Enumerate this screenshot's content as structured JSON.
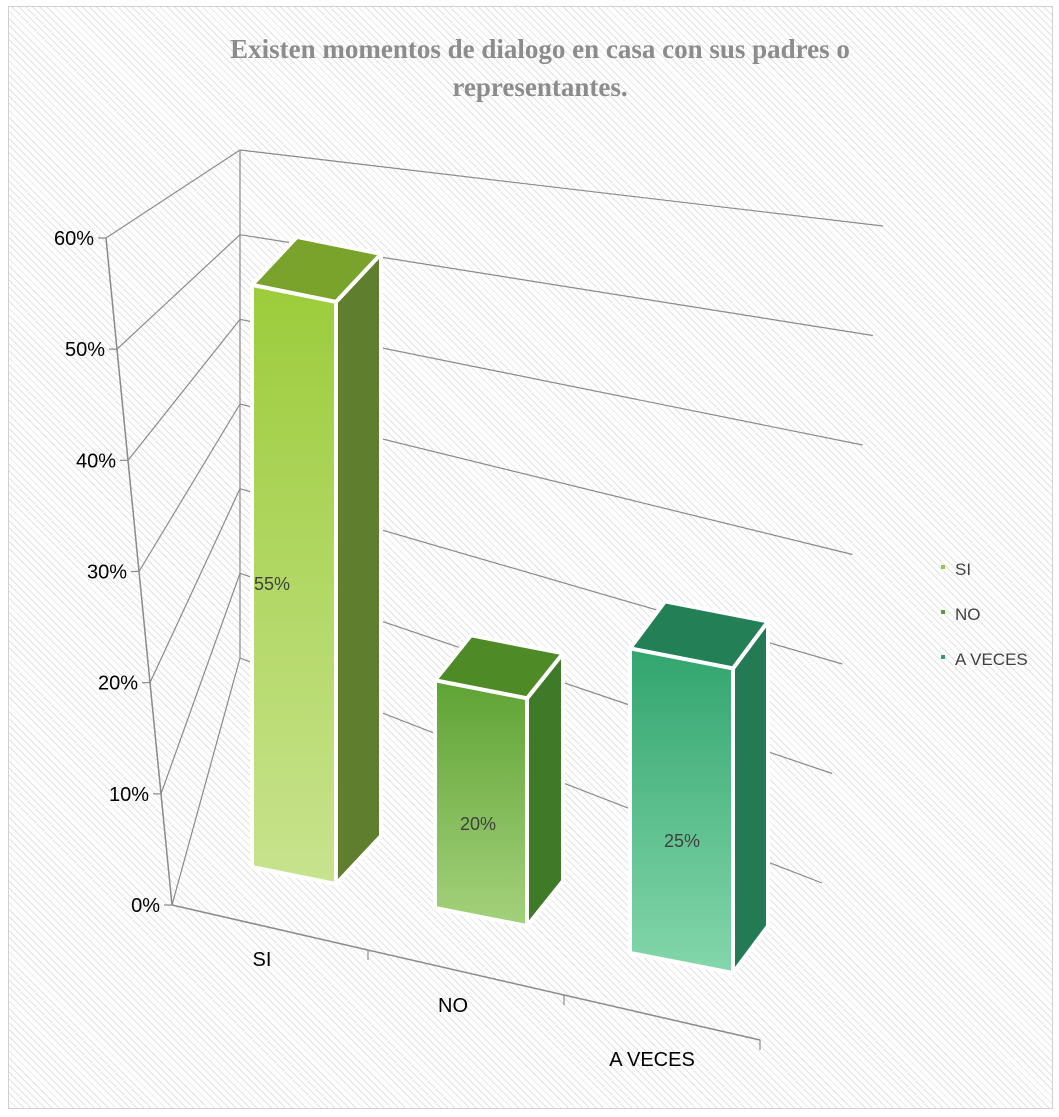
{
  "chart_data": {
    "type": "bar",
    "title": "Existen momentos de dialogo en casa con sus padres o representantes.",
    "title_lines": [
      "Existen momentos de dialogo en casa con sus padres o",
      "representantes."
    ],
    "categories": [
      "SI",
      "NO",
      "A VECES"
    ],
    "values": [
      55,
      20,
      25
    ],
    "data_labels": [
      "55%",
      "20%",
      "25%"
    ],
    "y_ticks": [
      "0%",
      "10%",
      "20%",
      "30%",
      "40%",
      "50%",
      "60%"
    ],
    "ylim": [
      0,
      60
    ],
    "grid": true,
    "legend": {
      "position": "right",
      "entries": [
        "SI",
        "NO",
        "A VECES"
      ]
    },
    "colors": [
      "#92c83e",
      "#5a9e32",
      "#2fa06a"
    ]
  }
}
